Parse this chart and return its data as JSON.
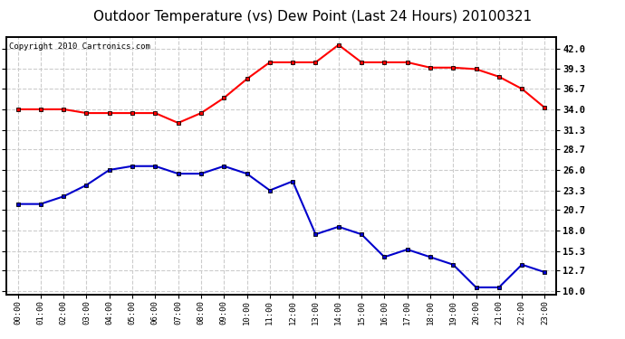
{
  "title": "Outdoor Temperature (vs) Dew Point (Last 24 Hours) 20100321",
  "copyright": "Copyright 2010 Cartronics.com",
  "x_labels": [
    "00:00",
    "01:00",
    "02:00",
    "03:00",
    "04:00",
    "05:00",
    "06:00",
    "07:00",
    "08:00",
    "09:00",
    "10:00",
    "11:00",
    "12:00",
    "13:00",
    "14:00",
    "15:00",
    "16:00",
    "17:00",
    "18:00",
    "19:00",
    "20:00",
    "21:00",
    "22:00",
    "23:00"
  ],
  "temp_data": [
    34.0,
    34.0,
    34.0,
    33.5,
    33.5,
    33.5,
    33.5,
    32.2,
    33.5,
    35.5,
    38.0,
    40.2,
    40.2,
    40.2,
    42.5,
    40.2,
    40.2,
    40.2,
    39.5,
    39.5,
    39.3,
    38.3,
    36.7,
    34.2
  ],
  "dew_data": [
    21.5,
    21.5,
    22.5,
    24.0,
    26.0,
    26.5,
    26.5,
    25.5,
    25.5,
    26.5,
    25.5,
    23.3,
    24.5,
    17.5,
    18.5,
    17.5,
    14.5,
    15.5,
    14.5,
    13.5,
    10.5,
    10.5,
    13.5,
    12.5
  ],
  "y_ticks": [
    10.0,
    12.7,
    15.3,
    18.0,
    20.7,
    23.3,
    26.0,
    28.7,
    31.3,
    34.0,
    36.7,
    39.3,
    42.0
  ],
  "ylim": [
    9.5,
    43.5
  ],
  "temp_color": "#ff0000",
  "dew_color": "#0000cc",
  "bg_color": "#ffffff",
  "grid_color": "#cccccc",
  "title_fontsize": 11,
  "copyright_fontsize": 6.5
}
